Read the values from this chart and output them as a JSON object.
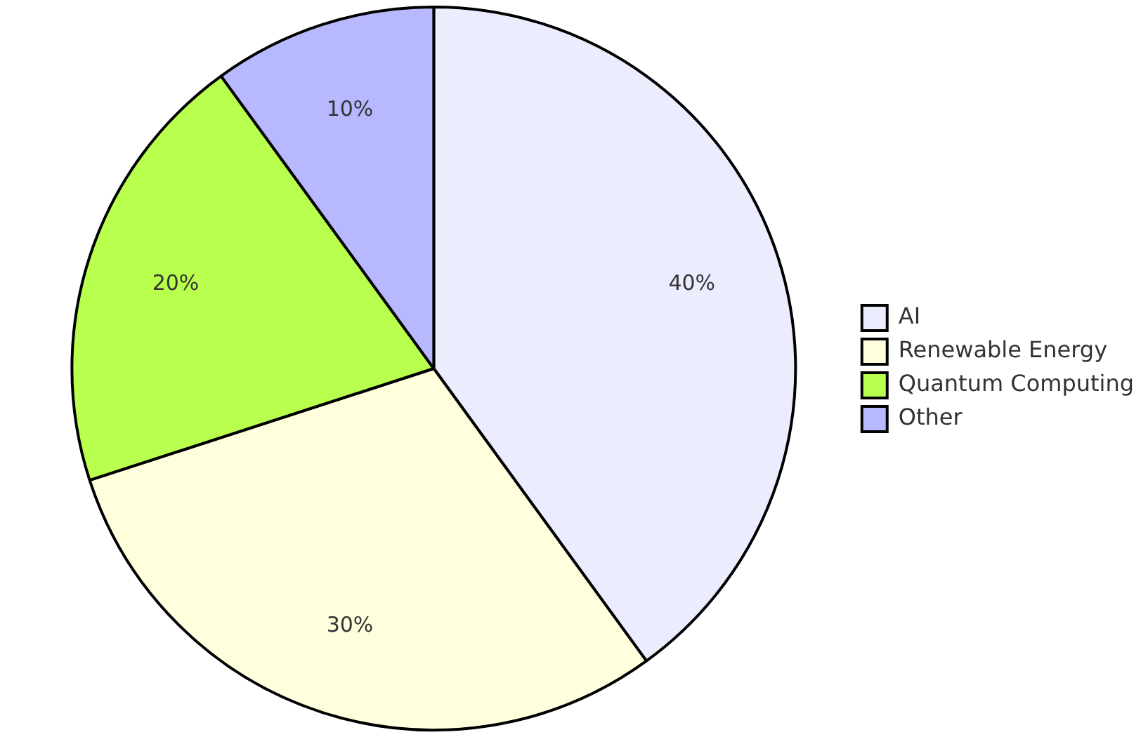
{
  "chart_data": {
    "type": "pie",
    "categories": [
      "AI",
      "Renewable Energy",
      "Quantum Computing",
      "Other"
    ],
    "values": [
      40,
      30,
      20,
      10
    ],
    "value_labels": [
      "40%",
      "30%",
      "20%",
      "10%"
    ],
    "colors": [
      "#ececff",
      "#ffffde",
      "#b9ff4d",
      "#b8b8ff"
    ],
    "legend": "right"
  }
}
